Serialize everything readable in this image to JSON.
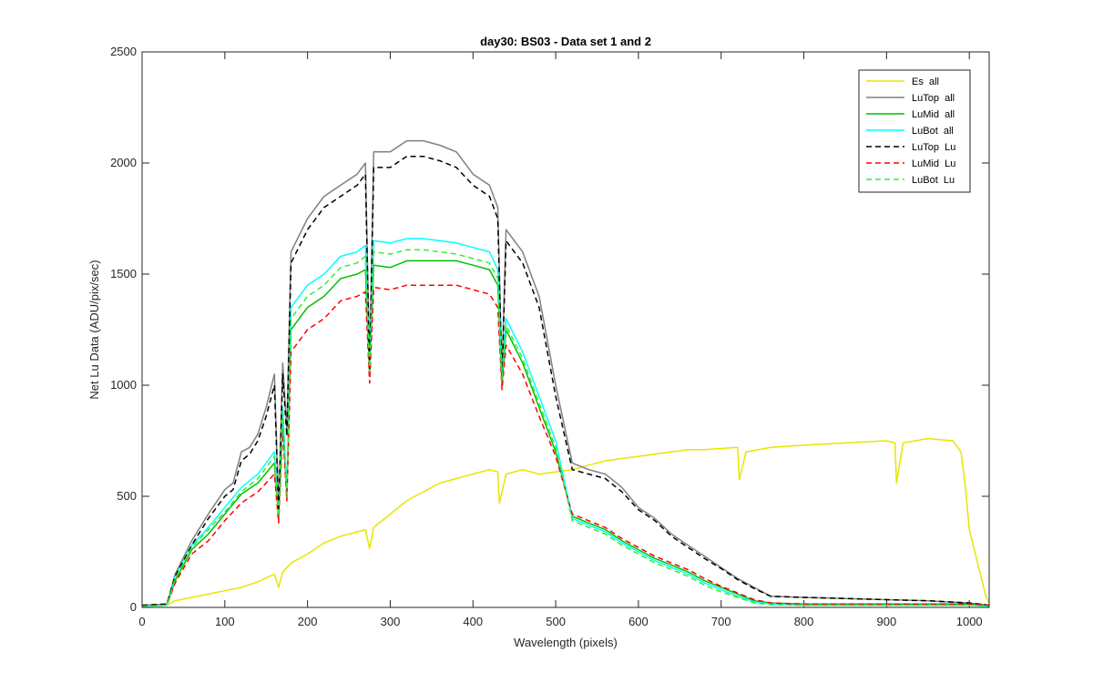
{
  "chart_data": {
    "type": "line",
    "title": "day30: BS03 - Data set 1 and 2",
    "xlabel": "Wavelength (pixels)",
    "ylabel": "Net Lu Data (ADU/pix/sec)",
    "xlim": [
      0,
      1024
    ],
    "ylim": [
      0,
      2500
    ],
    "xticks": [
      "0",
      "100",
      "200",
      "300",
      "400",
      "500",
      "600",
      "700",
      "800",
      "900",
      "1000"
    ],
    "yticks": [
      "0",
      "500",
      "1000",
      "1500",
      "2000",
      "2500"
    ],
    "grid": false,
    "legend_position": "top-right",
    "series": [
      {
        "name": "Es  all",
        "color": "#e6e600",
        "style": "solid",
        "x": [
          0,
          30,
          40,
          60,
          80,
          100,
          120,
          140,
          160,
          165,
          170,
          180,
          200,
          220,
          240,
          260,
          270,
          275,
          280,
          300,
          320,
          340,
          360,
          380,
          400,
          420,
          430,
          432,
          440,
          460,
          480,
          500,
          520,
          540,
          560,
          580,
          600,
          620,
          640,
          660,
          680,
          700,
          720,
          722,
          730,
          760,
          800,
          850,
          900,
          910,
          912,
          920,
          950,
          980,
          990,
          995,
          1000,
          1010,
          1020,
          1024
        ],
        "y": [
          5,
          10,
          30,
          45,
          60,
          75,
          90,
          115,
          150,
          90,
          160,
          200,
          240,
          290,
          320,
          340,
          350,
          265,
          360,
          420,
          480,
          520,
          560,
          580,
          600,
          620,
          610,
          470,
          600,
          620,
          600,
          610,
          620,
          640,
          660,
          670,
          680,
          690,
          700,
          710,
          710,
          715,
          720,
          575,
          700,
          720,
          730,
          740,
          750,
          740,
          560,
          740,
          760,
          750,
          700,
          550,
          350,
          200,
          50,
          20
        ]
      },
      {
        "name": "LuTop  all",
        "color": "#808080",
        "style": "solid",
        "x": [
          0,
          30,
          40,
          60,
          80,
          100,
          110,
          120,
          130,
          140,
          150,
          160,
          165,
          170,
          175,
          180,
          200,
          220,
          240,
          260,
          270,
          275,
          280,
          300,
          320,
          340,
          360,
          380,
          400,
          420,
          430,
          435,
          440,
          460,
          480,
          500,
          520,
          540,
          560,
          580,
          600,
          620,
          640,
          660,
          680,
          700,
          720,
          740,
          760,
          800,
          850,
          900,
          950,
          1000,
          1024
        ],
        "y": [
          10,
          15,
          150,
          300,
          420,
          530,
          560,
          700,
          720,
          780,
          900,
          1050,
          450,
          1100,
          800,
          1600,
          1750,
          1850,
          1900,
          1950,
          2000,
          1080,
          2050,
          2050,
          2100,
          2100,
          2080,
          2050,
          1950,
          1900,
          1800,
          1050,
          1700,
          1600,
          1400,
          1000,
          650,
          620,
          600,
          540,
          450,
          400,
          330,
          280,
          230,
          180,
          130,
          90,
          50,
          45,
          40,
          35,
          30,
          20,
          10
        ]
      },
      {
        "name": "LuMid  all",
        "color": "#00c000",
        "style": "solid",
        "x": [
          0,
          30,
          40,
          60,
          80,
          100,
          120,
          140,
          160,
          165,
          170,
          175,
          180,
          200,
          220,
          240,
          260,
          270,
          275,
          280,
          300,
          320,
          340,
          360,
          380,
          400,
          420,
          430,
          435,
          440,
          460,
          480,
          500,
          520,
          540,
          560,
          580,
          600,
          620,
          640,
          660,
          680,
          700,
          720,
          740,
          760,
          800,
          850,
          900,
          950,
          1000,
          1024
        ],
        "y": [
          5,
          10,
          120,
          260,
          330,
          420,
          510,
          560,
          650,
          400,
          850,
          500,
          1250,
          1350,
          1400,
          1480,
          1500,
          1520,
          1050,
          1540,
          1530,
          1560,
          1560,
          1560,
          1560,
          1540,
          1520,
          1450,
          1000,
          1250,
          1100,
          900,
          700,
          410,
          380,
          350,
          300,
          260,
          220,
          190,
          160,
          120,
          90,
          60,
          30,
          20,
          15,
          15,
          15,
          15,
          15,
          10
        ]
      },
      {
        "name": "LuBot  all",
        "color": "#00ffff",
        "style": "solid",
        "x": [
          0,
          30,
          40,
          60,
          80,
          100,
          120,
          140,
          160,
          165,
          170,
          175,
          180,
          200,
          220,
          240,
          260,
          270,
          275,
          280,
          300,
          320,
          340,
          360,
          380,
          400,
          420,
          430,
          435,
          440,
          460,
          480,
          500,
          520,
          540,
          560,
          580,
          600,
          620,
          640,
          660,
          680,
          700,
          720,
          740,
          760,
          800,
          850,
          900,
          950,
          1000,
          1024
        ],
        "y": [
          5,
          10,
          140,
          280,
          360,
          450,
          540,
          600,
          700,
          420,
          900,
          520,
          1350,
          1450,
          1500,
          1580,
          1600,
          1630,
          1080,
          1650,
          1640,
          1660,
          1660,
          1650,
          1640,
          1620,
          1600,
          1520,
          1050,
          1300,
          1150,
          950,
          750,
          400,
          370,
          340,
          290,
          250,
          210,
          180,
          150,
          110,
          80,
          50,
          25,
          15,
          10,
          10,
          10,
          10,
          10,
          5
        ]
      },
      {
        "name": "LuTop  Lu",
        "color": "#000000",
        "style": "dashed",
        "x": [
          0,
          30,
          40,
          60,
          80,
          100,
          110,
          120,
          130,
          140,
          150,
          160,
          165,
          170,
          175,
          180,
          200,
          220,
          240,
          260,
          270,
          275,
          280,
          300,
          320,
          340,
          360,
          380,
          400,
          420,
          430,
          435,
          440,
          460,
          480,
          500,
          520,
          540,
          560,
          580,
          600,
          620,
          640,
          660,
          680,
          700,
          720,
          740,
          760,
          800,
          850,
          900,
          950,
          1000,
          1024
        ],
        "y": [
          10,
          15,
          140,
          280,
          400,
          500,
          530,
          660,
          690,
          750,
          860,
          1000,
          430,
          1050,
          770,
          1550,
          1700,
          1800,
          1850,
          1900,
          1950,
          1050,
          1980,
          1980,
          2030,
          2030,
          2010,
          1980,
          1900,
          1850,
          1750,
          1020,
          1650,
          1550,
          1350,
          950,
          620,
          600,
          580,
          520,
          440,
          390,
          320,
          270,
          220,
          175,
          125,
          85,
          50,
          45,
          40,
          35,
          30,
          20,
          10
        ]
      },
      {
        "name": "LuMid  Lu",
        "color": "#ff0000",
        "style": "dashed",
        "x": [
          0,
          30,
          40,
          60,
          80,
          100,
          120,
          140,
          160,
          165,
          170,
          175,
          180,
          200,
          220,
          240,
          260,
          270,
          275,
          280,
          300,
          320,
          340,
          360,
          380,
          400,
          420,
          430,
          435,
          440,
          460,
          480,
          500,
          520,
          540,
          560,
          580,
          600,
          620,
          640,
          660,
          680,
          700,
          720,
          740,
          760,
          800,
          850,
          900,
          950,
          1000,
          1024
        ],
        "y": [
          5,
          10,
          110,
          240,
          300,
          390,
          470,
          520,
          600,
          380,
          800,
          480,
          1150,
          1250,
          1300,
          1380,
          1400,
          1420,
          1010,
          1440,
          1430,
          1450,
          1450,
          1450,
          1450,
          1430,
          1410,
          1350,
          980,
          1180,
          1050,
          860,
          680,
          420,
          390,
          360,
          310,
          270,
          230,
          200,
          170,
          130,
          95,
          65,
          35,
          20,
          15,
          15,
          15,
          15,
          15,
          10
        ]
      },
      {
        "name": "LuBot  Lu",
        "color": "#33ee33",
        "style": "dashed",
        "x": [
          0,
          30,
          40,
          60,
          80,
          100,
          120,
          140,
          160,
          165,
          170,
          175,
          180,
          200,
          220,
          240,
          260,
          270,
          275,
          280,
          300,
          320,
          340,
          360,
          380,
          400,
          420,
          430,
          435,
          440,
          460,
          480,
          500,
          520,
          540,
          560,
          580,
          600,
          620,
          640,
          660,
          680,
          700,
          720,
          740,
          760,
          800,
          850,
          900,
          950,
          1000,
          1024
        ],
        "y": [
          5,
          10,
          130,
          270,
          350,
          430,
          520,
          580,
          680,
          410,
          880,
          510,
          1300,
          1400,
          1450,
          1530,
          1550,
          1580,
          1060,
          1600,
          1590,
          1610,
          1610,
          1600,
          1590,
          1570,
          1550,
          1480,
          1020,
          1270,
          1120,
          920,
          720,
          390,
          360,
          330,
          280,
          240,
          200,
          170,
          140,
          100,
          70,
          45,
          20,
          12,
          10,
          10,
          10,
          10,
          10,
          5
        ]
      }
    ]
  }
}
